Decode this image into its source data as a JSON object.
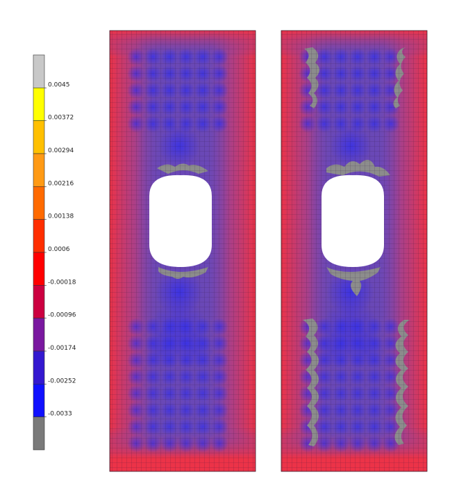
{
  "legend": {
    "labels": [
      "0.0045",
      "0.00372",
      "0.00294",
      "0.00216",
      "0.00138",
      "0.0006",
      "-0.00018",
      "-0.00096",
      "-0.00174",
      "-0.00252",
      "-0.0033"
    ],
    "colors": [
      "#c8c8c8",
      "#ffff00",
      "#ffc000",
      "#ff9a14",
      "#ff6a00",
      "#ff2e00",
      "#ff0000",
      "#cc0040",
      "#7a18a0",
      "#3418d0",
      "#1010ff",
      "#7a7a7a"
    ]
  },
  "palette": {
    "mesh_line": "#2a1a40",
    "edge_red": "#e83a4e",
    "interior_purple": "#6a4aae",
    "low_blue": "#3a30e6",
    "grey_region": "#8c8c8c"
  },
  "panels": [
    {
      "id": "left",
      "grey_zones": "small"
    },
    {
      "id": "right",
      "grey_zones": "large"
    }
  ]
}
